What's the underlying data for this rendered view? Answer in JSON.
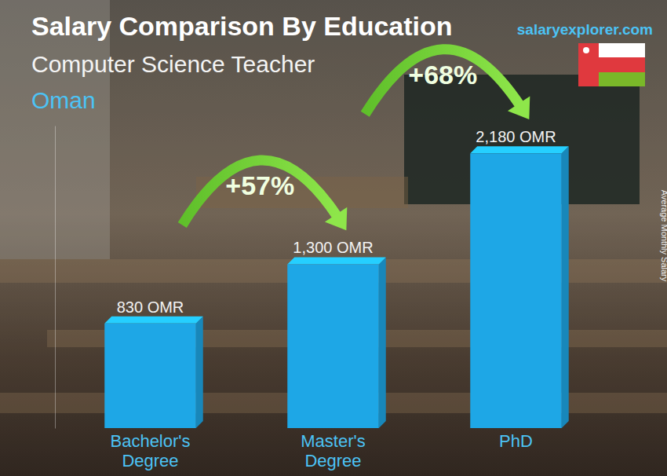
{
  "chart_data": {
    "type": "bar",
    "title": "Salary Comparison By Education",
    "subtitle": "Computer Science Teacher",
    "region": "Oman",
    "source": "salaryexplorer.com",
    "y_label": "Average Monthly Salary",
    "categories": [
      "Bachelor's Degree",
      "Master's Degree",
      "PhD"
    ],
    "values": [
      830,
      1300,
      2180
    ],
    "value_labels": [
      "830 OMR",
      "1,300 OMR",
      "2,180 OMR"
    ],
    "data_labels": true,
    "color": "#1ea7e6",
    "ylim": [
      0,
      2400
    ],
    "tick_labels": "x",
    "grid": false,
    "annotations": [
      {
        "text": "+57%",
        "from": "Bachelor's Degree",
        "to": "Master's Degree"
      },
      {
        "text": "+68%",
        "from": "Master's Degree",
        "to": "PhD"
      }
    ]
  }
}
